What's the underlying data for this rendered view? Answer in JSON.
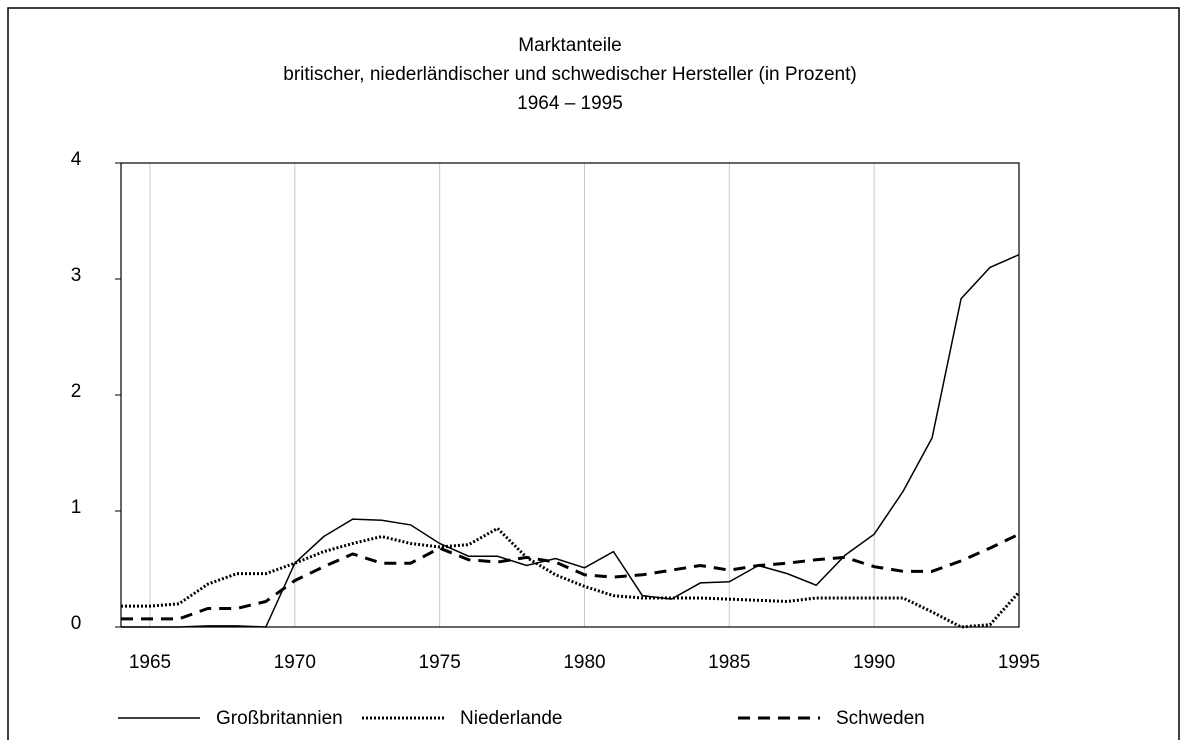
{
  "chart_data": {
    "type": "line",
    "title": [
      "Marktanteile",
      "britischer, niederländischer und schwedischer Hersteller (in Prozent)",
      "1964 – 1995"
    ],
    "x": [
      1964,
      1965,
      1966,
      1967,
      1968,
      1969,
      1970,
      1971,
      1972,
      1973,
      1974,
      1975,
      1976,
      1977,
      1978,
      1979,
      1980,
      1981,
      1982,
      1983,
      1984,
      1985,
      1986,
      1987,
      1988,
      1989,
      1990,
      1991,
      1992,
      1993,
      1994,
      1995
    ],
    "xlim": [
      1964,
      1995
    ],
    "xticks": [
      1965,
      1970,
      1975,
      1980,
      1985,
      1990,
      1995
    ],
    "ylim": [
      0,
      4
    ],
    "yticks": [
      0,
      1,
      2,
      3,
      4
    ],
    "grid": true,
    "legend": "bottom",
    "series": [
      {
        "name": "Großbritannien",
        "color": "#000000",
        "style": "solid",
        "values": [
          0,
          0,
          0,
          0.01,
          0.01,
          0,
          0.55,
          0.78,
          0.93,
          0.92,
          0.88,
          0.72,
          0.61,
          0.61,
          0.53,
          0.59,
          0.51,
          0.65,
          0.27,
          0.24,
          0.38,
          0.39,
          0.53,
          0.46,
          0.36,
          0.62,
          0.8,
          1.17,
          1.63,
          2.83,
          3.1,
          3.21
        ]
      },
      {
        "name": "Niederlande",
        "color": "#000000",
        "style": "dotted",
        "values": [
          0.18,
          0.18,
          0.2,
          0.37,
          0.46,
          0.46,
          0.55,
          0.65,
          0.72,
          0.78,
          0.72,
          0.69,
          0.71,
          0.85,
          0.6,
          0.45,
          0.35,
          0.27,
          0.25,
          0.25,
          0.25,
          0.24,
          0.23,
          0.22,
          0.25,
          0.25,
          0.25,
          0.25,
          0.13,
          0,
          0.02,
          0.3
        ]
      },
      {
        "name": "Schweden",
        "color": "#000000",
        "style": "dashed",
        "values": [
          0.07,
          0.07,
          0.07,
          0.16,
          0.16,
          0.22,
          0.4,
          0.52,
          0.63,
          0.55,
          0.55,
          0.68,
          0.58,
          0.56,
          0.6,
          0.56,
          0.45,
          0.43,
          0.45,
          0.49,
          0.53,
          0.49,
          0.53,
          0.55,
          0.58,
          0.6,
          0.52,
          0.48,
          0.48,
          0.57,
          0.68,
          0.8
        ]
      }
    ]
  }
}
